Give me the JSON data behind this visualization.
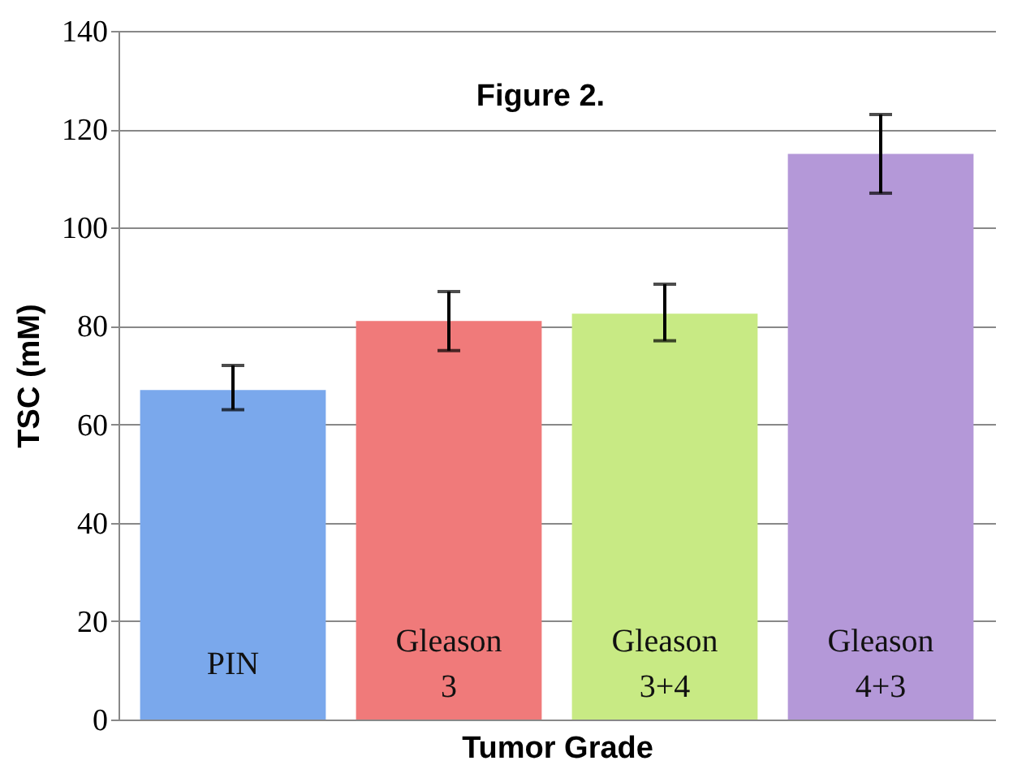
{
  "chart_data": {
    "type": "bar",
    "title": "Figure 2.",
    "xlabel": "Tumor Grade",
    "ylabel": "TSC (mM)",
    "categories": [
      "PIN",
      "Gleason 3",
      "Gleason 3+4",
      "Gleason 4+3"
    ],
    "values": [
      67,
      81,
      82.5,
      115
    ],
    "colors": [
      "#7aa8ec",
      "#f07a7a",
      "#c8ea84",
      "#b498d8"
    ],
    "errors": [
      [
        63,
        72
      ],
      [
        75,
        87
      ],
      [
        77,
        88.5
      ],
      [
        107,
        123
      ]
    ],
    "ylim": [
      0,
      140
    ],
    "yticks": [
      0,
      20,
      40,
      60,
      80,
      100,
      120,
      140
    ],
    "grid": "y"
  }
}
